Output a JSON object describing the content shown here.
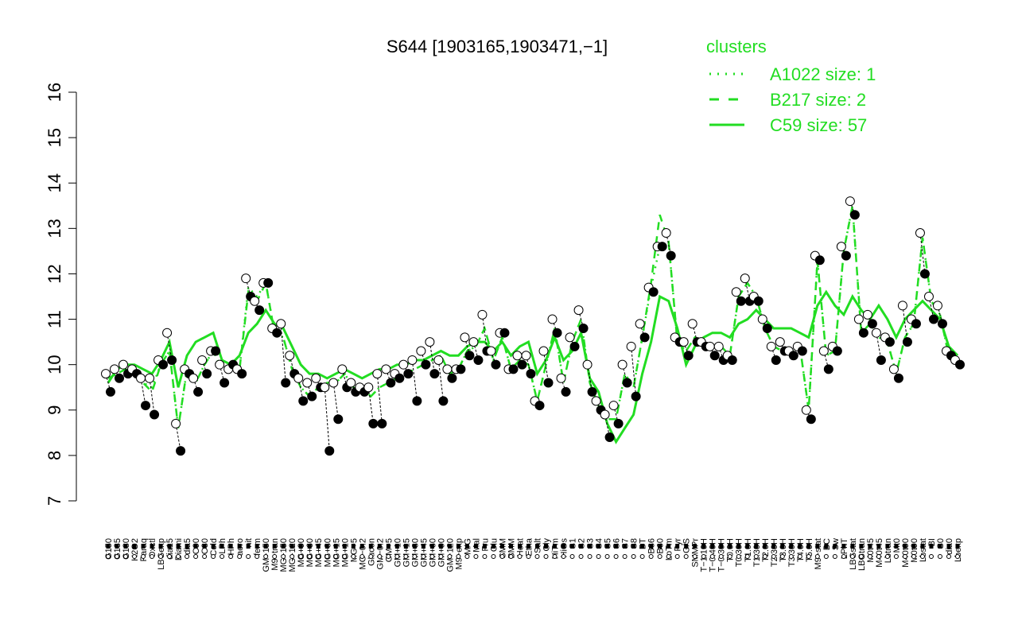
{
  "colors": {
    "axis": "#000000",
    "dots": "#000000",
    "cluster": "#22dd22"
  },
  "chart_data": {
    "type": "line",
    "title": "S644 [1903165,1903471,−1]",
    "xlabel": "",
    "ylabel": "",
    "ylim": [
      7,
      16
    ],
    "yticks": [
      7,
      8,
      9,
      10,
      11,
      12,
      13,
      14,
      15,
      16
    ],
    "legend": {
      "title": "clusters",
      "placement": "top-right",
      "entries": [
        {
          "label": "A1022 size: 1",
          "style": "dotted"
        },
        {
          "label": "B217 size: 2",
          "style": "dashed"
        },
        {
          "label": "C59 size: 57",
          "style": "solid"
        }
      ]
    },
    "x_tick_labels": [
      "G150",
      "G135",
      "G180",
      "H2O2",
      "Paraq",
      "Oxctl",
      "LBGexp",
      "dia15",
      "Diami",
      "dia5",
      "C90",
      "C30",
      "Cold",
      "LPh",
      "HPh",
      "aero",
      "nit",
      "ferm",
      "GM+150",
      "M9−tran",
      "MG+150",
      "MG+120",
      "MG+90",
      "MG+60",
      "MG+45",
      "MG+30",
      "MG+15",
      "MG+10",
      "MG+5",
      "MG−0.2",
      "Glucon",
      "GM−0.2",
      "GM+5",
      "GM+10",
      "GM+15",
      "GM+30",
      "GM+45",
      "GM+60",
      "GM+90",
      "GM+120",
      "M9−exp",
      "M/G",
      "Mal",
      "Fru",
      "Glu",
      "SMM",
      "BMM",
      "Heat",
      "Etha",
      "Salt",
      "Gly",
      "HiTm",
      "HiOs",
      "S1",
      "S2",
      "S3",
      "S4",
      "S5",
      "S6",
      "S7",
      "S8",
      "BT",
      "B36",
      "B60",
      "LoTm",
      "Pyr",
      "G/S",
      "SMMPr",
      "T−1.10H",
      "T−0.40H",
      "T−0.30H",
      "T0.0H",
      "T0.30H",
      "T1.0H",
      "T1.30H",
      "T2.0H",
      "T2.30H",
      "T3.0H",
      "T3.30H",
      "T4.0H",
      "T5.0H",
      "M9−stat",
      "BC",
      "Sw",
      "LPhT",
      "LBGstat",
      "LBGtran",
      "M0t45",
      "M40t45",
      "Lbtran",
      "Mt0",
      "M40t90",
      "M0t90",
      "Lbstat",
      "BI",
      "S0",
      "dia0",
      "Lbexp"
    ],
    "series": [
      {
        "name": "A1022 size: 1",
        "style": "dotted",
        "values": [
          9.7,
          9.8,
          9.9,
          9.8,
          9.6,
          9.5,
          10.0,
          10.3,
          8.6,
          9.9,
          9.6,
          10.0,
          10.3,
          9.9,
          9.9,
          9.9,
          11.7,
          11.5,
          11.8,
          10.7,
          10.6,
          9.9,
          9.5,
          9.3,
          9.5,
          9.6,
          9.6,
          9.8,
          9.5,
          9.5,
          9.3,
          9.5,
          9.6,
          9.7,
          9.8,
          9.9,
          10.0,
          10.1,
          10.2,
          9.8,
          9.9,
          10.3,
          10.4,
          10.8,
          10.1,
          10.6,
          9.9,
          10.1,
          10.0,
          9.2,
          10.0,
          10.8,
          9.6,
          10.5,
          11.0,
          9.6,
          9.1,
          8.8,
          8.8,
          9.8,
          9.5,
          10.6,
          11.7,
          12.6,
          12.7,
          10.5,
          10.3,
          10.6,
          10.5,
          10.4,
          10.4,
          10.2,
          11.5,
          11.8,
          11.5,
          10.8,
          10.4,
          10.3,
          10.3,
          10.4,
          9.0,
          12.3,
          10.2,
          10.3,
          12.5,
          13.5,
          10.7,
          10.9,
          10.6,
          10.5,
          9.8,
          10.6,
          10.9,
          12.8,
          11.4,
          11.1,
          10.2,
          10.0
        ]
      },
      {
        "name": "B217 size: 2",
        "style": "dashed",
        "values": [
          9.7,
          9.8,
          9.9,
          9.8,
          9.6,
          9.4,
          10.0,
          10.3,
          8.6,
          9.9,
          9.6,
          10.0,
          10.3,
          9.9,
          9.9,
          9.9,
          11.6,
          11.4,
          11.8,
          10.7,
          10.6,
          9.9,
          9.5,
          9.3,
          9.5,
          9.6,
          9.6,
          9.8,
          9.5,
          9.5,
          9.3,
          9.5,
          9.6,
          9.7,
          9.8,
          9.9,
          10.0,
          10.1,
          10.2,
          9.8,
          9.9,
          10.3,
          10.4,
          10.8,
          10.1,
          10.6,
          9.9,
          10.1,
          10.0,
          9.2,
          10.0,
          10.8,
          9.6,
          10.5,
          11.0,
          9.6,
          9.1,
          8.8,
          8.8,
          9.8,
          9.5,
          10.6,
          11.8,
          13.3,
          12.7,
          10.5,
          10.3,
          10.6,
          10.5,
          10.4,
          10.4,
          10.2,
          11.5,
          11.8,
          11.5,
          10.8,
          10.4,
          10.3,
          10.3,
          10.4,
          9.0,
          12.3,
          10.2,
          10.3,
          12.5,
          13.5,
          10.7,
          10.9,
          10.6,
          10.5,
          9.8,
          10.6,
          10.9,
          12.8,
          11.4,
          11.1,
          10.2,
          10.0
        ]
      },
      {
        "name": "C59 size: 57",
        "style": "solid",
        "values": [
          9.6,
          9.9,
          10.0,
          10.0,
          9.9,
          9.8,
          10.1,
          10.5,
          9.5,
          10.2,
          10.5,
          10.6,
          10.7,
          10.1,
          10.0,
          10.2,
          10.7,
          10.9,
          11.2,
          10.9,
          10.8,
          10.4,
          10.0,
          9.8,
          9.8,
          9.7,
          9.8,
          9.9,
          9.8,
          9.7,
          9.8,
          9.9,
          9.9,
          10.0,
          10.0,
          10.1,
          10.1,
          10.2,
          10.3,
          10.2,
          10.2,
          10.4,
          10.5,
          10.5,
          10.3,
          10.5,
          10.2,
          10.4,
          10.5,
          9.8,
          10.1,
          10.6,
          10.1,
          10.3,
          10.7,
          9.7,
          9.4,
          8.7,
          8.3,
          8.6,
          8.9,
          9.8,
          10.5,
          11.5,
          11.4,
          10.8,
          10.0,
          10.4,
          10.6,
          10.7,
          10.7,
          10.6,
          10.9,
          11.0,
          11.2,
          11.0,
          10.8,
          10.8,
          10.8,
          10.7,
          10.6,
          11.3,
          11.6,
          11.3,
          11.1,
          11.5,
          11.2,
          11.0,
          11.3,
          11.0,
          10.6,
          11.0,
          11.2,
          11.4,
          11.2,
          11.0,
          10.4,
          10.2
        ]
      }
    ],
    "points": [
      [
        9.8,
        9.4
      ],
      [
        9.9,
        9.7
      ],
      [
        10.0,
        9.8
      ],
      [
        9.9,
        9.8
      ],
      [
        9.7,
        9.1
      ],
      [
        9.7,
        8.9
      ],
      [
        10.1,
        10.0
      ],
      [
        10.7,
        10.1
      ],
      [
        8.7,
        8.1
      ],
      [
        9.9,
        9.8
      ],
      [
        9.7,
        9.4
      ],
      [
        10.1,
        9.8
      ],
      [
        10.3,
        10.3
      ],
      [
        10.0,
        9.6
      ],
      [
        9.9,
        10.0
      ],
      [
        9.9,
        9.8
      ],
      [
        11.9,
        11.5
      ],
      [
        11.4,
        11.2
      ],
      [
        11.8,
        11.8
      ],
      [
        10.8,
        10.7
      ],
      [
        10.9,
        9.6
      ],
      [
        10.2,
        9.8
      ],
      [
        9.7,
        9.2
      ],
      [
        9.6,
        9.3
      ],
      [
        9.7,
        9.5
      ],
      [
        9.5,
        8.1
      ],
      [
        9.6,
        8.8
      ],
      [
        9.9,
        9.5
      ],
      [
        9.6,
        9.4
      ],
      [
        9.5,
        9.4
      ],
      [
        9.5,
        8.7
      ],
      [
        9.8,
        8.7
      ],
      [
        9.9,
        9.6
      ],
      [
        9.8,
        9.7
      ],
      [
        10.0,
        9.8
      ],
      [
        10.1,
        9.2
      ],
      [
        10.3,
        10.0
      ],
      [
        10.5,
        9.8
      ],
      [
        10.1,
        9.2
      ],
      [
        9.9,
        9.7
      ],
      [
        9.9,
        9.9
      ],
      [
        10.6,
        10.2
      ],
      [
        10.5,
        10.1
      ],
      [
        11.1,
        10.3
      ],
      [
        10.3,
        10.0
      ],
      [
        10.7,
        10.7
      ],
      [
        9.9,
        9.9
      ],
      [
        10.2,
        10.0
      ],
      [
        10.2,
        9.8
      ],
      [
        9.2,
        9.1
      ],
      [
        10.3,
        9.6
      ],
      [
        11.0,
        10.7
      ],
      [
        9.7,
        9.4
      ],
      [
        10.6,
        10.4
      ],
      [
        11.2,
        10.8
      ],
      [
        10.0,
        9.4
      ],
      [
        9.2,
        9.0
      ],
      [
        8.9,
        8.4
      ],
      [
        9.1,
        8.7
      ],
      [
        10.0,
        9.6
      ],
      [
        10.4,
        9.3
      ],
      [
        10.9,
        10.6
      ],
      [
        11.7,
        11.6
      ],
      [
        12.6,
        12.6
      ],
      [
        12.9,
        12.4
      ],
      [
        10.6,
        10.5
      ],
      [
        10.5,
        10.2
      ],
      [
        10.9,
        10.5
      ],
      [
        10.5,
        10.4
      ],
      [
        10.4,
        10.2
      ],
      [
        10.4,
        10.1
      ],
      [
        10.2,
        10.1
      ],
      [
        11.6,
        11.4
      ],
      [
        11.9,
        11.4
      ],
      [
        11.5,
        11.4
      ],
      [
        11.0,
        10.8
      ],
      [
        10.4,
        10.1
      ],
      [
        10.5,
        10.3
      ],
      [
        10.3,
        10.2
      ],
      [
        10.4,
        10.3
      ],
      [
        9.0,
        8.8
      ],
      [
        12.4,
        12.3
      ],
      [
        10.3,
        9.9
      ],
      [
        10.4,
        10.3
      ],
      [
        12.6,
        12.4
      ],
      [
        13.6,
        13.3
      ],
      [
        11.0,
        10.7
      ],
      [
        11.1,
        10.9
      ],
      [
        10.7,
        10.1
      ],
      [
        10.6,
        10.5
      ],
      [
        9.9,
        9.7
      ],
      [
        11.3,
        10.5
      ],
      [
        11.0,
        10.9
      ],
      [
        12.9,
        12.0
      ],
      [
        11.5,
        11.0
      ],
      [
        11.3,
        10.9
      ],
      [
        10.3,
        10.2
      ],
      [
        10.1,
        10.0
      ]
    ],
    "grid": false
  }
}
